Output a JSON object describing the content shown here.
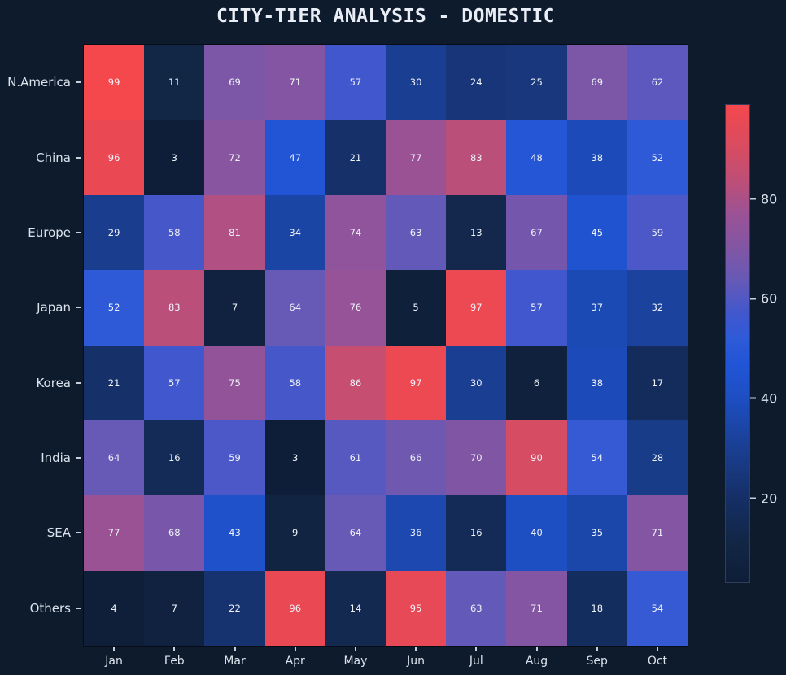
{
  "title": "CITY-TIER ANALYSIS - DOMESTIC",
  "colors": {
    "background": "#0e1b2d",
    "title_text": "#e9eef6",
    "axis_label": "#dbe3ed",
    "tick_mark": "#c6cfdc",
    "cell_text": "#eef2f8",
    "spine": "#070c16",
    "colorbar_outline": "#323d5c"
  },
  "chart_data": {
    "type": "heatmap",
    "title": "CITY-TIER ANALYSIS - DOMESTIC",
    "xlabel": "",
    "ylabel": "",
    "rows": [
      "N.America",
      "China",
      "Europe",
      "Japan",
      "Korea",
      "India",
      "SEA",
      "Others"
    ],
    "columns": [
      "Jan",
      "Feb",
      "Mar",
      "Apr",
      "May",
      "Jun",
      "Jul",
      "Aug",
      "Sep",
      "Oct"
    ],
    "values": [
      [
        99,
        11,
        69,
        71,
        57,
        30,
        24,
        25,
        69,
        62
      ],
      [
        96,
        3,
        72,
        47,
        21,
        77,
        83,
        48,
        38,
        52
      ],
      [
        29,
        58,
        81,
        34,
        74,
        63,
        13,
        67,
        45,
        59
      ],
      [
        52,
        83,
        7,
        64,
        76,
        5,
        97,
        57,
        37,
        32
      ],
      [
        21,
        57,
        75,
        58,
        86,
        97,
        30,
        6,
        38,
        17
      ],
      [
        64,
        16,
        59,
        3,
        61,
        66,
        70,
        90,
        54,
        28
      ],
      [
        77,
        68,
        43,
        9,
        64,
        36,
        16,
        40,
        35,
        71
      ],
      [
        4,
        7,
        22,
        96,
        14,
        95,
        63,
        71,
        18,
        54
      ]
    ],
    "annotated": true,
    "vmin": 3,
    "vmax": 99,
    "colorbar_position": "right",
    "colorbar_ticks": [
      20,
      40,
      60,
      80
    ],
    "colormap_stops": [
      {
        "t": 0.0,
        "color": "#0e1e38"
      },
      {
        "t": 0.083,
        "color": "#122645"
      },
      {
        "t": 0.177,
        "color": "#152f66"
      },
      {
        "t": 0.281,
        "color": "#1a3f92"
      },
      {
        "t": 0.385,
        "color": "#1d4ec2"
      },
      {
        "t": 0.458,
        "color": "#2155d6"
      },
      {
        "t": 0.51,
        "color": "#2e5ad8"
      },
      {
        "t": 0.563,
        "color": "#4157cd"
      },
      {
        "t": 0.635,
        "color": "#6759b6"
      },
      {
        "t": 0.698,
        "color": "#8056a4"
      },
      {
        "t": 0.771,
        "color": "#9b5295"
      },
      {
        "t": 0.833,
        "color": "#ba4f7a"
      },
      {
        "t": 0.906,
        "color": "#d64c62"
      },
      {
        "t": 1.0,
        "color": "#f4484d"
      }
    ]
  }
}
